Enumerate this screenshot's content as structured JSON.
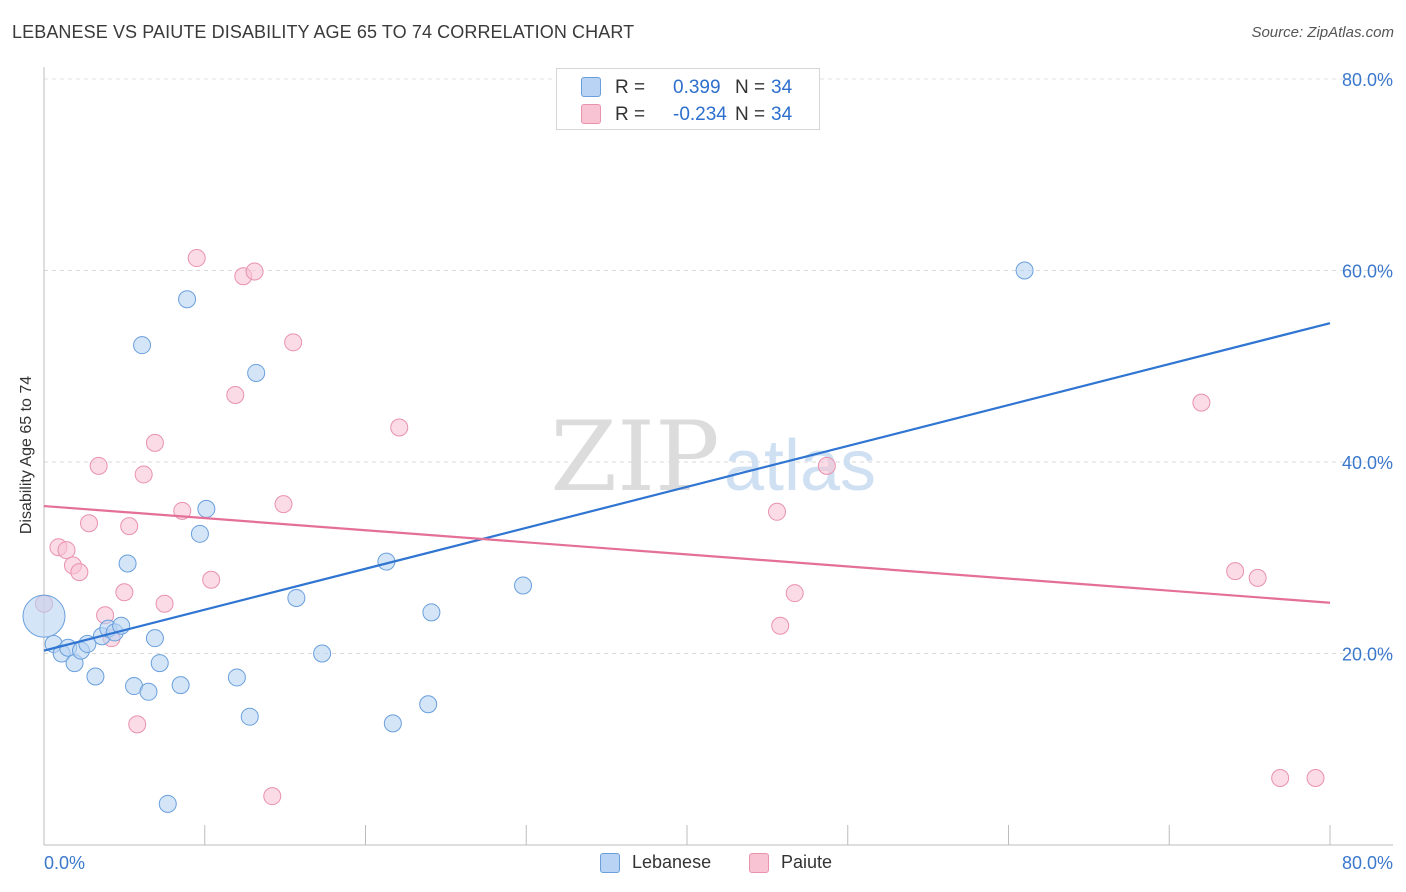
{
  "header": {
    "title": "LEBANESE VS PAIUTE DISABILITY AGE 65 TO 74 CORRELATION CHART",
    "source": "Source: ZipAtlas.com"
  },
  "colors": {
    "blue_fill": "#b8d3f3",
    "blue_stroke": "#6a9fdc",
    "blue_line": "#2f75d1",
    "pink_fill": "#f8c3d3",
    "pink_stroke": "#e992ae",
    "pink_line": "#e46f97",
    "tick_label": "#3b78cc"
  },
  "legend": {
    "rows": [
      {
        "r_label": "R =",
        "r_value": "0.399",
        "n_label": "N =",
        "n_value": "34"
      },
      {
        "r_label": "R =",
        "r_value": "-0.234",
        "n_label": "N =",
        "n_value": "34"
      }
    ],
    "bottom": [
      "Lebanese",
      "Paiute"
    ]
  },
  "chart_data": {
    "type": "scatter",
    "title": "LEBANESE VS PAIUTE DISABILITY AGE 65 TO 74 CORRELATION CHART",
    "xlabel": "",
    "ylabel": "Disability Age 65 to 74",
    "xlim": [
      0,
      80
    ],
    "ylim": [
      0,
      80
    ],
    "x_tick_labels": [
      "0.0%",
      "80.0%"
    ],
    "y_ticks": [
      20,
      40,
      60,
      80
    ],
    "y_tick_labels": [
      "20.0%",
      "40.0%",
      "60.0%",
      "80.0%"
    ],
    "watermark": {
      "main": "ZIP",
      "sub": "atlas"
    },
    "series": [
      {
        "name": "Lebanese",
        "r": 0.399,
        "n": 34,
        "trend": {
          "x": [
            0,
            80
          ],
          "y": [
            20.3,
            54.5
          ]
        },
        "points": [
          {
            "x": 0.0,
            "y": 23.9,
            "big": true
          },
          {
            "x": 0.6,
            "y": 21.0
          },
          {
            "x": 1.1,
            "y": 20.0
          },
          {
            "x": 1.5,
            "y": 20.6
          },
          {
            "x": 1.9,
            "y": 19.0
          },
          {
            "x": 2.3,
            "y": 20.3
          },
          {
            "x": 2.7,
            "y": 21.0
          },
          {
            "x": 3.2,
            "y": 17.6
          },
          {
            "x": 3.6,
            "y": 21.8
          },
          {
            "x": 4.0,
            "y": 22.6
          },
          {
            "x": 4.4,
            "y": 22.2
          },
          {
            "x": 4.8,
            "y": 22.9
          },
          {
            "x": 5.2,
            "y": 29.4
          },
          {
            "x": 5.6,
            "y": 16.6
          },
          {
            "x": 6.1,
            "y": 52.2
          },
          {
            "x": 6.5,
            "y": 16.0
          },
          {
            "x": 6.9,
            "y": 21.6
          },
          {
            "x": 7.2,
            "y": 19.0
          },
          {
            "x": 7.7,
            "y": 4.3
          },
          {
            "x": 8.5,
            "y": 16.7
          },
          {
            "x": 8.9,
            "y": 57.0
          },
          {
            "x": 9.7,
            "y": 32.5
          },
          {
            "x": 10.1,
            "y": 35.1
          },
          {
            "x": 12.0,
            "y": 17.5
          },
          {
            "x": 12.8,
            "y": 13.4
          },
          {
            "x": 13.2,
            "y": 49.3
          },
          {
            "x": 15.7,
            "y": 25.8
          },
          {
            "x": 17.3,
            "y": 20.0
          },
          {
            "x": 21.3,
            "y": 29.6
          },
          {
            "x": 21.7,
            "y": 12.7
          },
          {
            "x": 23.9,
            "y": 14.7
          },
          {
            "x": 24.1,
            "y": 24.3
          },
          {
            "x": 29.8,
            "y": 27.1
          },
          {
            "x": 61.0,
            "y": 60.0
          }
        ]
      },
      {
        "name": "Paiute",
        "r": -0.234,
        "n": 34,
        "trend": {
          "x": [
            0,
            80
          ],
          "y": [
            35.4,
            25.3
          ]
        },
        "points": [
          {
            "x": 0.0,
            "y": 25.2
          },
          {
            "x": 0.9,
            "y": 31.1
          },
          {
            "x": 1.4,
            "y": 30.8
          },
          {
            "x": 1.8,
            "y": 29.2
          },
          {
            "x": 2.2,
            "y": 28.5
          },
          {
            "x": 2.8,
            "y": 33.6
          },
          {
            "x": 3.4,
            "y": 39.6
          },
          {
            "x": 3.8,
            "y": 24.0
          },
          {
            "x": 4.2,
            "y": 21.6
          },
          {
            "x": 5.0,
            "y": 26.4
          },
          {
            "x": 5.3,
            "y": 33.3
          },
          {
            "x": 5.8,
            "y": 12.6
          },
          {
            "x": 6.2,
            "y": 38.7
          },
          {
            "x": 6.9,
            "y": 42.0
          },
          {
            "x": 7.5,
            "y": 25.2
          },
          {
            "x": 8.6,
            "y": 34.9
          },
          {
            "x": 9.5,
            "y": 61.3
          },
          {
            "x": 10.4,
            "y": 27.7
          },
          {
            "x": 11.9,
            "y": 47.0
          },
          {
            "x": 12.4,
            "y": 59.4
          },
          {
            "x": 13.1,
            "y": 59.9
          },
          {
            "x": 14.2,
            "y": 5.1
          },
          {
            "x": 14.9,
            "y": 35.6
          },
          {
            "x": 15.5,
            "y": 52.5
          },
          {
            "x": 22.1,
            "y": 43.6
          },
          {
            "x": 45.6,
            "y": 34.8
          },
          {
            "x": 45.8,
            "y": 22.9
          },
          {
            "x": 46.7,
            "y": 26.3
          },
          {
            "x": 48.7,
            "y": 39.6
          },
          {
            "x": 72.0,
            "y": 46.2
          },
          {
            "x": 74.1,
            "y": 28.6
          },
          {
            "x": 75.5,
            "y": 27.9
          },
          {
            "x": 76.9,
            "y": 7.0
          },
          {
            "x": 79.1,
            "y": 7.0
          }
        ]
      }
    ]
  }
}
